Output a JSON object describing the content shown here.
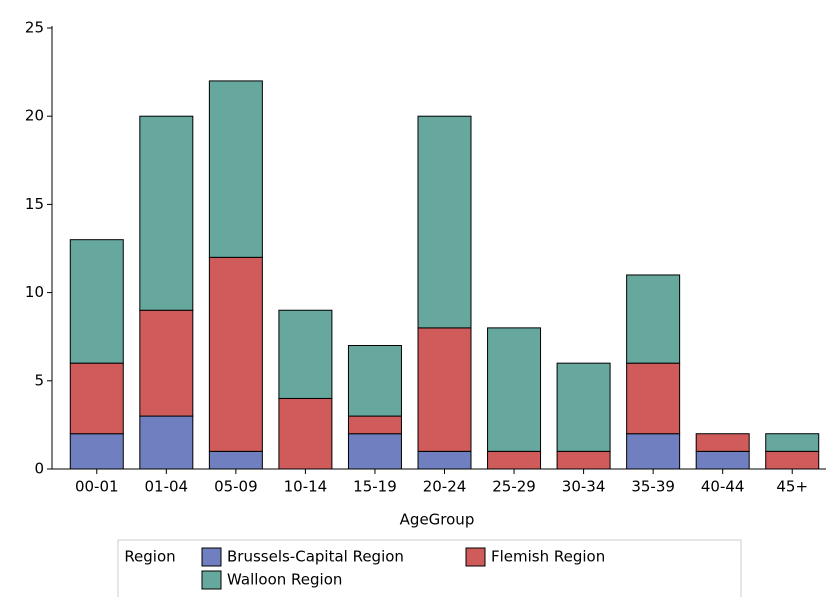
{
  "chart_data": {
    "type": "stacked_bar",
    "x_label": "AgeGroup",
    "legend_title": "Region",
    "categories": [
      "00-01",
      "01-04",
      "05-09",
      "10-14",
      "15-19",
      "20-24",
      "25-29",
      "30-34",
      "35-39",
      "40-44",
      "45+"
    ],
    "series": [
      {
        "name": "Brussels-Capital Region",
        "color": "#6f7fbf",
        "values": [
          2,
          3,
          1,
          0,
          2,
          1,
          0,
          0,
          2,
          1,
          0
        ]
      },
      {
        "name": "Flemish Region",
        "color": "#d05b5b",
        "values": [
          4,
          6,
          11,
          4,
          1,
          7,
          1,
          1,
          4,
          1,
          1
        ]
      },
      {
        "name": "Walloon Region",
        "color": "#66a89e",
        "values": [
          7,
          11,
          10,
          5,
          4,
          12,
          7,
          5,
          5,
          0,
          1
        ]
      }
    ],
    "ylim": [
      0,
      25
    ],
    "yticks": [
      0,
      5,
      10,
      15,
      20,
      25
    ],
    "grid": false
  }
}
